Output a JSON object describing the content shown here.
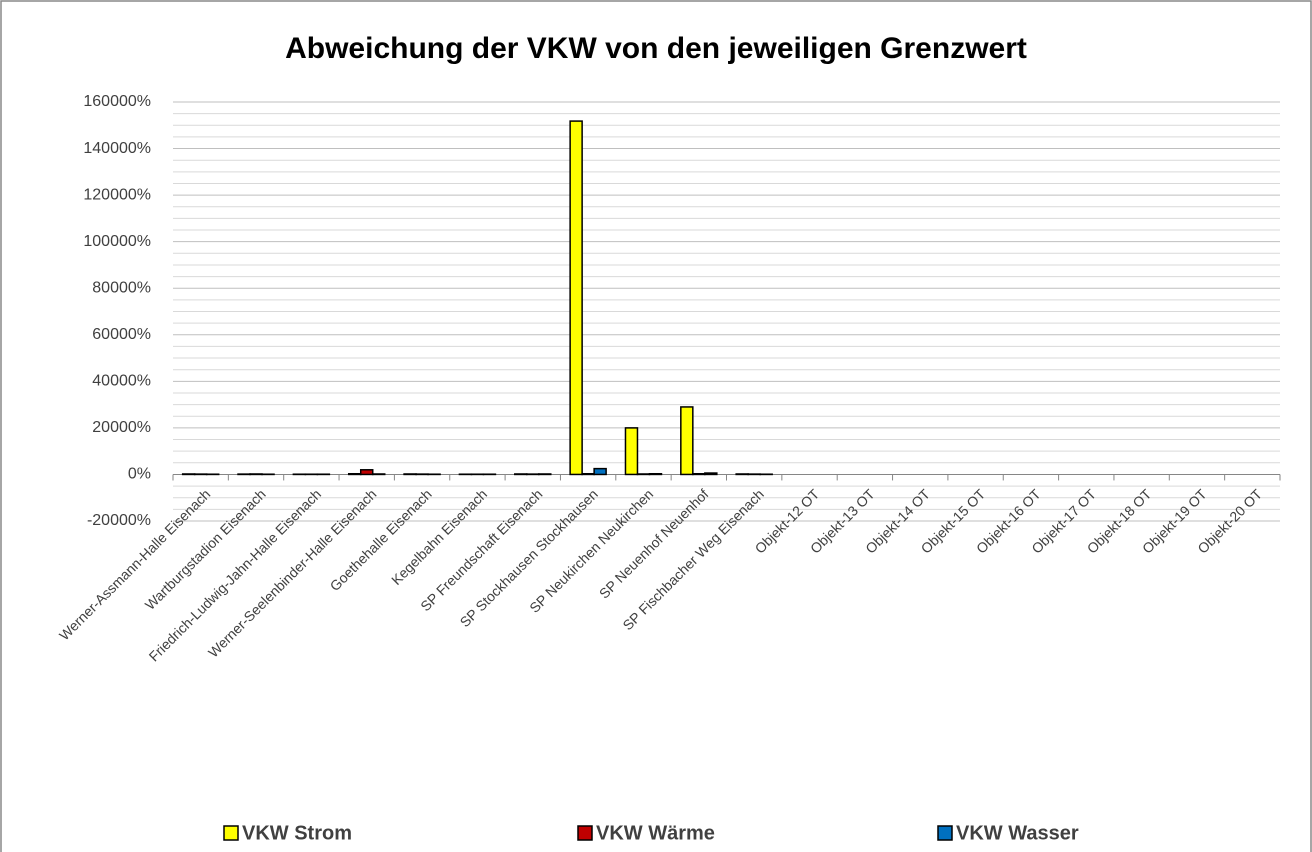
{
  "chart_data": {
    "type": "bar",
    "title": "Abweichung der VKW von den jeweiligen Grenzwert",
    "categories": [
      "Werner-Assmann-Halle Eisenach",
      "Wartburgstadion Eisenach",
      "Friedrich-Ludwig-Jahn-Halle Eisenach",
      "Werner-Seelenbinder-Halle Eisenach",
      "Goethehalle Eisenach",
      "Kegelbahn Eisenach",
      "SP Freundschaft Eisenach",
      "SP Stockhausen Stockhausen",
      "SP Neukirchen Neukirchen",
      "SP Neuenhof Neuenhof",
      "SP Fischbacher Weg Eisenach",
      "Objekt-12 OT",
      "Objekt-13 OT",
      "Objekt-14 OT",
      "Objekt-15 OT",
      "Objekt-16 OT",
      "Objekt-17 OT",
      "Objekt-18 OT",
      "Objekt-19 OT",
      "Objekt-20 OT"
    ],
    "series": [
      {
        "name": "VKW Strom",
        "color": "#ffff00",
        "values": [
          200,
          150,
          100,
          300,
          200,
          100,
          200,
          151800,
          20000,
          29000,
          200,
          0,
          0,
          0,
          0,
          0,
          0,
          0,
          0,
          0
        ]
      },
      {
        "name": "VKW Wärme",
        "color": "#c00000",
        "values": [
          150,
          200,
          100,
          2000,
          150,
          100,
          150,
          300,
          200,
          300,
          150,
          0,
          0,
          0,
          0,
          0,
          0,
          0,
          0,
          0
        ]
      },
      {
        "name": "VKW Wasser",
        "color": "#0070c0",
        "values": [
          100,
          100,
          100,
          200,
          100,
          100,
          200,
          2500,
          300,
          600,
          100,
          0,
          0,
          0,
          0,
          0,
          0,
          0,
          0,
          0
        ]
      }
    ],
    "ylim": [
      -20000,
      160000
    ],
    "yticks": [
      {
        "value": -20000,
        "label": "-20000%"
      },
      {
        "value": 0,
        "label": "0%"
      },
      {
        "value": 20000,
        "label": "20000%"
      },
      {
        "value": 40000,
        "label": "40000%"
      },
      {
        "value": 60000,
        "label": "60000%"
      },
      {
        "value": 80000,
        "label": "80000%"
      },
      {
        "value": 100000,
        "label": "100000%"
      },
      {
        "value": 120000,
        "label": "120000%"
      },
      {
        "value": 140000,
        "label": "140000%"
      },
      {
        "value": 160000,
        "label": "160000%"
      }
    ],
    "minor_yticks": [
      -15000,
      -10000,
      -5000,
      5000,
      10000,
      15000,
      25000,
      30000,
      35000,
      45000,
      50000,
      55000,
      65000,
      70000,
      75000,
      85000,
      90000,
      95000,
      105000,
      110000,
      115000,
      125000,
      130000,
      135000,
      145000,
      150000,
      155000
    ],
    "grid": true,
    "legend": "bottom"
  }
}
